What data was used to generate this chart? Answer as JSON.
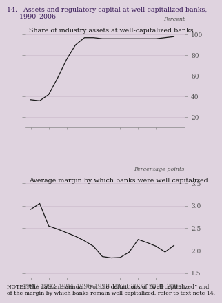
{
  "title_line1": "14.   Assets and regulatory capital at well-capitalized banks,",
  "title_line2": "      1990–2006",
  "bg_color": "#dfd3df",
  "top_chart": {
    "title": "Share of industry assets at well-capitalized banks",
    "ylabel": "Percent",
    "ylim": [
      10,
      110
    ],
    "yticks": [
      20,
      40,
      60,
      80,
      100
    ],
    "years": [
      1990,
      1991,
      1992,
      1993,
      1994,
      1995,
      1996,
      1997,
      1998,
      1999,
      2000,
      2001,
      2002,
      2003,
      2004,
      2005,
      2006
    ],
    "values": [
      37,
      36,
      42,
      58,
      76,
      90,
      97,
      97,
      96,
      96,
      96,
      96,
      96,
      96,
      96,
      97,
      98
    ]
  },
  "bottom_chart": {
    "title": "Average margin by which banks were well capitalized",
    "ylabel": "Percentage points",
    "ylim": [
      1.4,
      3.7
    ],
    "yticks": [
      1.5,
      2.0,
      2.5,
      3.0,
      3.5
    ],
    "years": [
      1990,
      1991,
      1992,
      1993,
      1994,
      1995,
      1996,
      1997,
      1998,
      1999,
      2000,
      2001,
      2002,
      2003,
      2004,
      2005,
      2006
    ],
    "values": [
      2.92,
      3.05,
      2.55,
      2.48,
      2.4,
      2.32,
      2.22,
      2.1,
      1.87,
      1.84,
      1.85,
      1.97,
      2.25,
      2.18,
      2.1,
      1.97,
      2.12
    ]
  },
  "note_text": "NOTE:  The data are annual.  For the definitions of “well capitalized” and\nof the margin by which banks remain well capitalized, refer to text note 14.",
  "line_color": "#1a1a1a",
  "tick_color": "#555555",
  "title_color": "#3d1f5c",
  "xticks": [
    1990,
    1992,
    1994,
    1996,
    1998,
    2000,
    2002,
    2004,
    2006
  ],
  "grid_color": "#c8b8c8"
}
